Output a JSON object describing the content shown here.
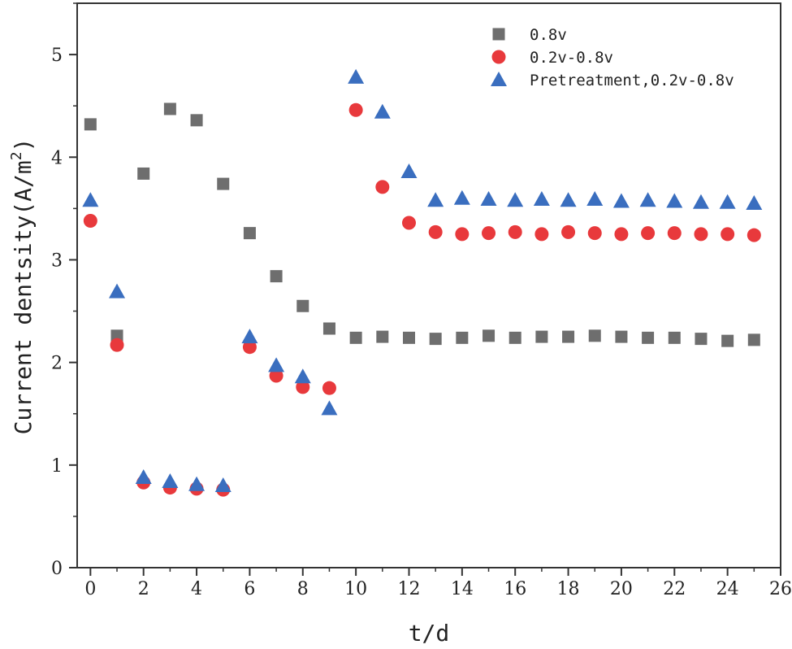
{
  "chart_data": {
    "type": "scatter",
    "title": "",
    "xlabel": "t/d",
    "ylabel": {
      "prefix": "Current dentsity(A/m",
      "sup": "2",
      "suffix": ")"
    },
    "xlim": [
      -0.5,
      26
    ],
    "ylim": [
      0,
      5.5
    ],
    "xticks": [
      "0",
      "2",
      "4",
      "6",
      "8",
      "10",
      "12",
      "14",
      "16",
      "18",
      "20",
      "22",
      "24",
      "26"
    ],
    "yticks": [
      "0",
      "1",
      "2",
      "3",
      "4",
      "5"
    ],
    "grid": false,
    "legend_position": "top-right",
    "x": [
      0,
      1,
      2,
      3,
      4,
      5,
      6,
      7,
      8,
      9,
      10,
      11,
      12,
      13,
      14,
      15,
      16,
      17,
      18,
      19,
      20,
      21,
      22,
      23,
      24,
      25
    ],
    "series": [
      {
        "name": "0.8v",
        "marker": "square",
        "color": "#6e6e6e",
        "values": [
          4.32,
          2.26,
          3.84,
          4.47,
          4.36,
          3.74,
          3.26,
          2.84,
          2.55,
          2.33,
          2.24,
          2.25,
          2.24,
          2.23,
          2.24,
          2.26,
          2.24,
          2.25,
          2.25,
          2.26,
          2.25,
          2.24,
          2.24,
          2.23,
          2.21,
          2.22
        ]
      },
      {
        "name": "0.2v-0.8v",
        "marker": "circle",
        "color": "#e8393c",
        "values": [
          3.38,
          2.17,
          0.83,
          0.78,
          0.77,
          0.76,
          2.15,
          1.87,
          1.76,
          1.75,
          4.46,
          3.71,
          3.36,
          3.27,
          3.25,
          3.26,
          3.27,
          3.25,
          3.27,
          3.26,
          3.25,
          3.26,
          3.26,
          3.25,
          3.25,
          3.24
        ]
      },
      {
        "name": "Pretreatment,0.2v-0.8v",
        "marker": "triangle",
        "color": "#3a6ebf",
        "values": [
          3.58,
          2.69,
          0.88,
          0.84,
          0.81,
          0.8,
          2.25,
          1.97,
          1.86,
          1.55,
          4.78,
          4.44,
          3.86,
          3.58,
          3.6,
          3.59,
          3.58,
          3.59,
          3.58,
          3.59,
          3.57,
          3.58,
          3.57,
          3.56,
          3.56,
          3.55
        ]
      }
    ]
  }
}
